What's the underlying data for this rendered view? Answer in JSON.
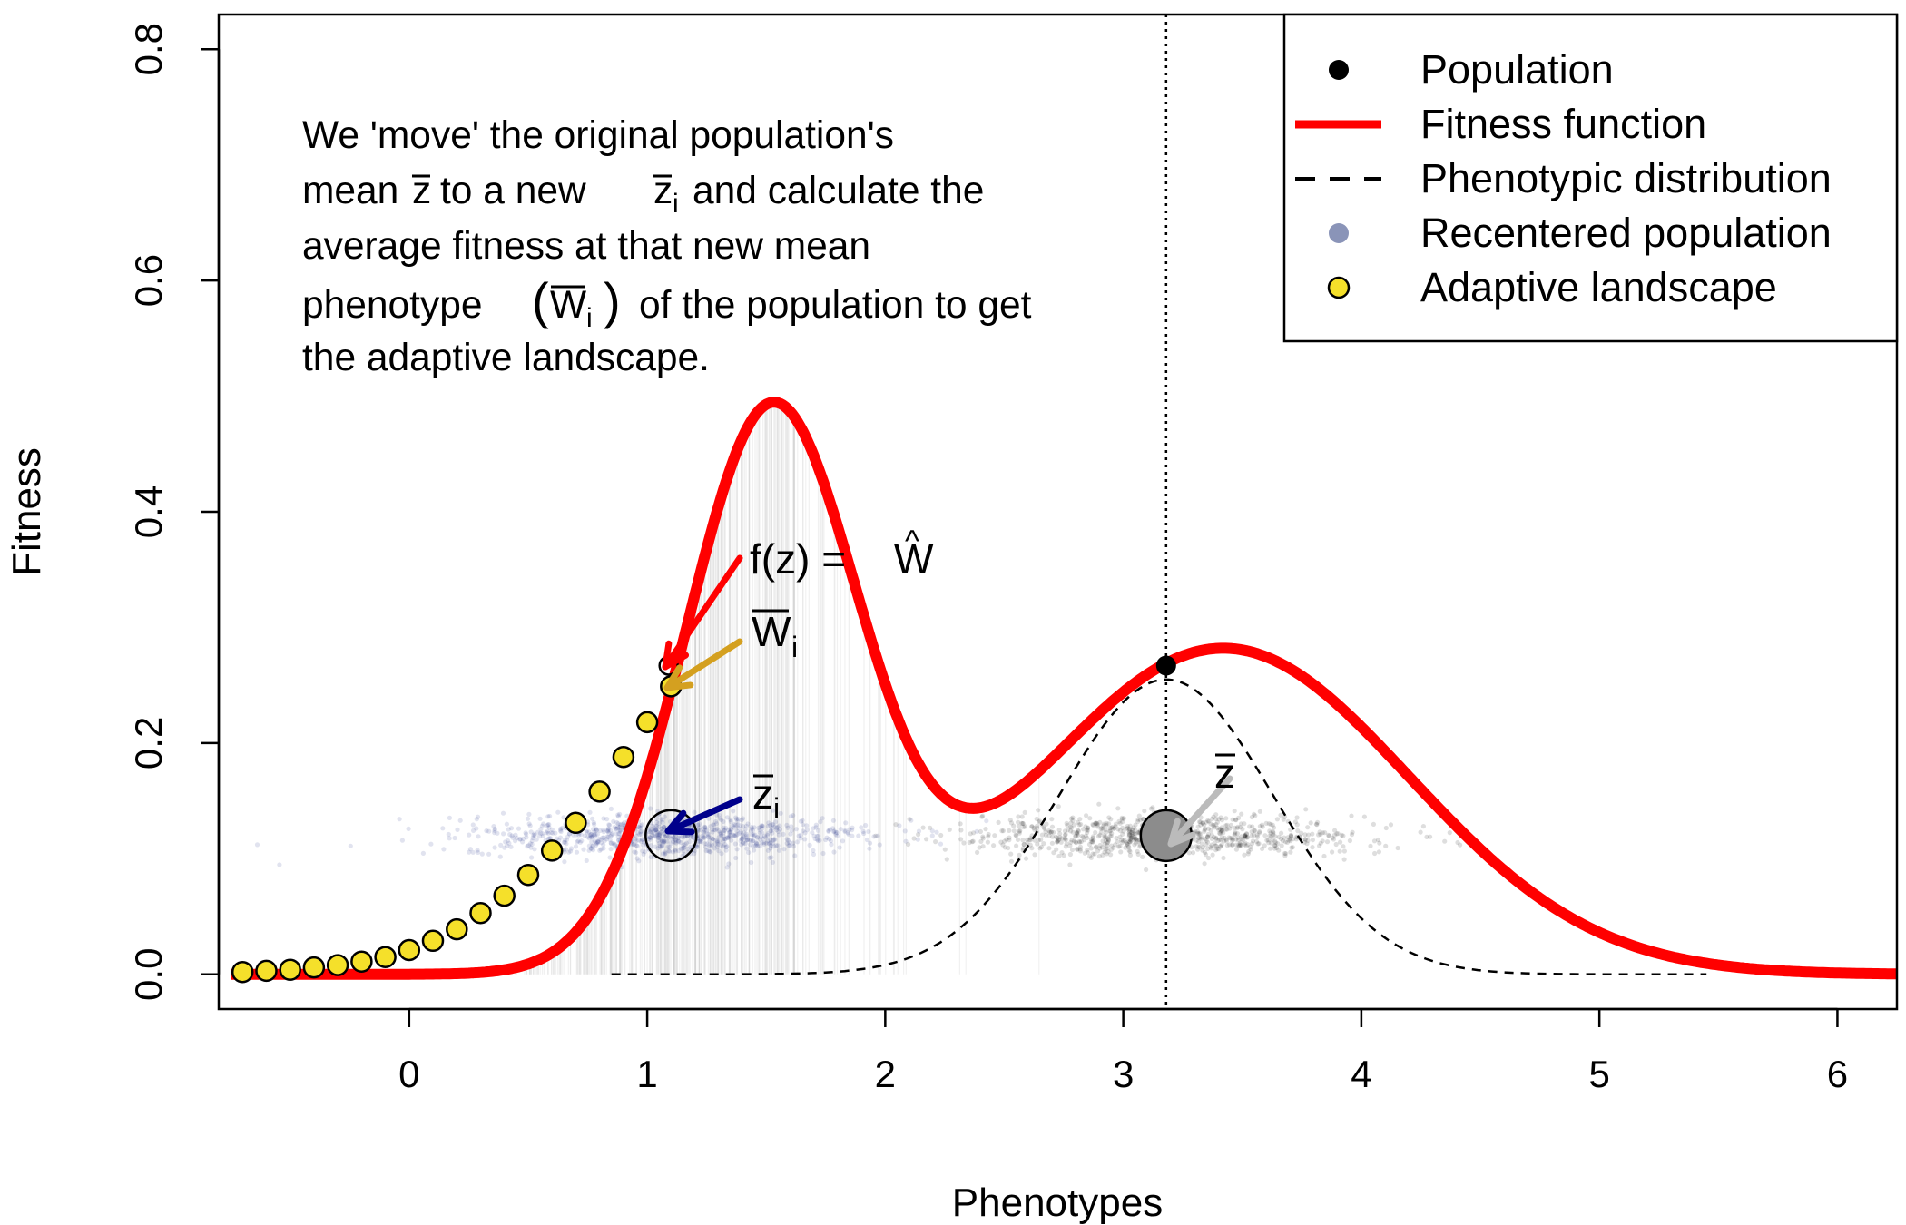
{
  "chart_data": {
    "type": "line",
    "xlabel": "Phenotypes",
    "ylabel": "Fitness",
    "xlim": [
      -0.8,
      6.25
    ],
    "ylim": [
      -0.03,
      0.83
    ],
    "x_ticks": [
      0,
      1,
      2,
      3,
      4,
      5,
      6
    ],
    "x_tick_labels": [
      "0",
      "1",
      "2",
      "3",
      "4",
      "5",
      "6"
    ],
    "y_ticks": [
      0.0,
      0.2,
      0.4,
      0.6,
      0.8
    ],
    "y_tick_labels": [
      "0.0",
      "0.2",
      "0.4",
      "0.6",
      "0.8"
    ],
    "grid": false,
    "legend_position": "top-right",
    "legend": [
      {
        "label": "Population",
        "symbol": "point",
        "color": "#000000"
      },
      {
        "label": "Fitness function",
        "symbol": "line",
        "color": "#ff0000"
      },
      {
        "label": "Phenotypic distribution",
        "symbol": "dashed",
        "color": "#000000"
      },
      {
        "label": "Recentered population",
        "symbol": "point",
        "color": "#8a94b8"
      },
      {
        "label": "Adaptive landscape",
        "symbol": "point",
        "color": "#f5e02a"
      }
    ],
    "fitness_function": {
      "color": "#ff0000",
      "components": [
        {
          "mean": 1.52,
          "sd": 0.36,
          "peak": 0.48
        },
        {
          "mean": 3.42,
          "sd": 0.78,
          "peak": 0.282
        }
      ]
    },
    "phenotypic_distribution": {
      "mean": 3.18,
      "sd": 0.45,
      "peak": 0.255,
      "x_range": [
        0.85,
        5.45
      ]
    },
    "population_mean": {
      "x": 3.18,
      "y": 0.267
    },
    "recentered_mean": {
      "x": 1.1,
      "y": 0.12
    },
    "adaptive_landscape": {
      "x": [
        -0.7,
        -0.6,
        -0.5,
        -0.4,
        -0.3,
        -0.2,
        -0.1,
        0.0,
        0.1,
        0.2,
        0.3,
        0.4,
        0.5,
        0.6,
        0.7,
        0.8,
        0.9,
        1.0,
        1.1
      ],
      "y": [
        0.002,
        0.003,
        0.004,
        0.006,
        0.008,
        0.011,
        0.015,
        0.021,
        0.029,
        0.039,
        0.053,
        0.068,
        0.086,
        0.107,
        0.131,
        0.158,
        0.188,
        0.218,
        0.249
      ],
      "color": "#f5e02a"
    },
    "point_clouds": [
      {
        "name": "population",
        "center": 3.18,
        "y_center": 0.12,
        "color": "#000000"
      },
      {
        "name": "recentered",
        "center": 1.1,
        "y_center": 0.12,
        "color": "#1a2a80"
      }
    ],
    "vline_x": 3.18,
    "annotations": {
      "text_lines": [
        "We 'move' the original population's",
        "mean",
        "to a new",
        "and calculate the",
        "average fitness at that new mean",
        "phenotype",
        "of the population to get",
        "the adaptive landscape."
      ],
      "symbol_z": "z",
      "symbol_i": "i",
      "symbol_W": "W",
      "fz_label": "f(z) = ",
      "arrow_colors": {
        "fitness": "#ff0000",
        "wbar": "#d4a020",
        "zi": "#00008b",
        "zbar": "#bbbbbb"
      }
    }
  }
}
